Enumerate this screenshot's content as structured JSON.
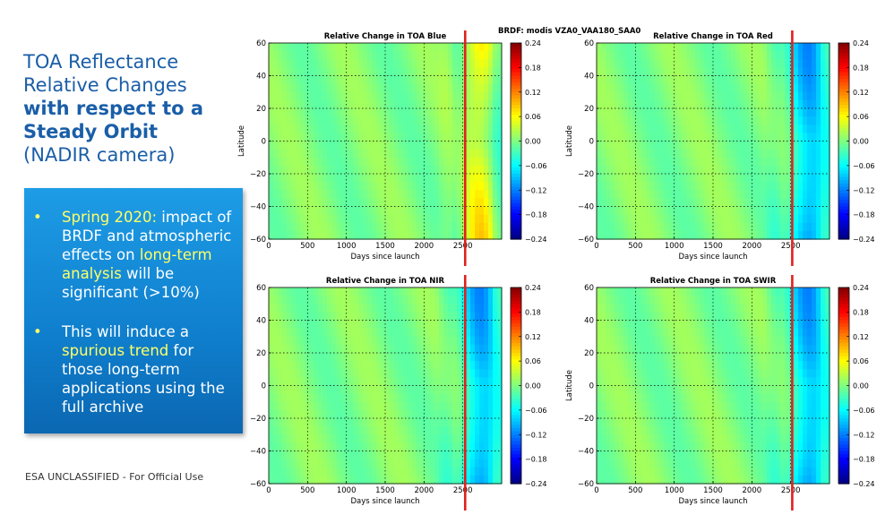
{
  "slide": {
    "title_line1": "TOA Reflectance",
    "title_line2": "Relative Changes",
    "title_line3": "with respect to a",
    "title_line4": "Steady Orbit",
    "title_line5": "(NADIR camera)",
    "bullets": [
      {
        "hl1": "Spring 2020:",
        "t1": " impact of BRDF and atmospheric effects on ",
        "hl2": "long-term analysis",
        "t2": " will be significant (>10%)"
      },
      {
        "t0": "This will induce a ",
        "hl1": "spurious trend",
        "t1": " for those long-term applications using the full archive"
      }
    ],
    "footer": "ESA UNCLASSIFIED - For Official Use",
    "brdf_title": "BRDF: modis VZA0_VAA180_SAA0",
    "colors": {
      "title": "#1a5ea8",
      "highlight": "#ffff66",
      "box": "#1690dc",
      "marker_line": "#e02020"
    }
  },
  "chart_data": [
    {
      "type": "heatmap",
      "title": "Relative Change in TOA Blue",
      "xlabel": "Days since launch",
      "ylabel": "Latitude",
      "xlim": [
        0,
        3000
      ],
      "ylim": [
        -60,
        60
      ],
      "xticks": [
        "0",
        "500",
        "1000",
        "1500",
        "2000",
        "2500"
      ],
      "yticks": [
        "60",
        "40",
        "20",
        "0",
        "−20",
        "−40",
        "−60"
      ],
      "colorbar": {
        "min": -0.24,
        "max": 0.24,
        "ticks": [
          "0.24",
          "0.18",
          "0.12",
          "0.06",
          "0.00",
          "−0.06",
          "−0.12",
          "−0.18",
          "−0.24"
        ]
      },
      "grid": true,
      "marker_day": 2530
    },
    {
      "type": "heatmap",
      "title": "Relative Change in TOA Red",
      "xlabel": "Days since launch",
      "ylabel": "Latitude",
      "xlim": [
        0,
        3000
      ],
      "ylim": [
        -60,
        60
      ],
      "xticks": [
        "0",
        "500",
        "1000",
        "1500",
        "2000",
        "2500"
      ],
      "yticks": [
        "60",
        "40",
        "20",
        "0",
        "−20",
        "−40",
        "−60"
      ],
      "colorbar": {
        "min": -0.24,
        "max": 0.24,
        "ticks": [
          "0.24",
          "0.18",
          "0.12",
          "0.06",
          "0.00",
          "−0.06",
          "−0.12",
          "−0.18",
          "−0.24"
        ]
      },
      "grid": true,
      "marker_day": 2520
    },
    {
      "type": "heatmap",
      "title": "Relative Change in TOA NIR",
      "xlabel": "Days since launch",
      "ylabel": "",
      "xlim": [
        0,
        3000
      ],
      "ylim": [
        -60,
        60
      ],
      "xticks": [
        "0",
        "500",
        "1000",
        "1500",
        "2000",
        "2500"
      ],
      "yticks": [
        "60",
        "40",
        "20",
        "0",
        "−20",
        "−40",
        "−60"
      ],
      "colorbar": {
        "min": -0.24,
        "max": 0.24,
        "ticks": [
          "0.24",
          "0.18",
          "0.12",
          "0.06",
          "0.00",
          "−0.06",
          "−0.12",
          "−0.18",
          "−0.24"
        ]
      },
      "grid": true,
      "marker_day": 2530
    },
    {
      "type": "heatmap",
      "title": "Relative Change in TOA SWIR",
      "xlabel": "Days since launch",
      "ylabel": "Latitude",
      "xlim": [
        0,
        3000
      ],
      "ylim": [
        -60,
        60
      ],
      "xticks": [
        "0",
        "500",
        "1000",
        "1500",
        "2000",
        "2500"
      ],
      "yticks": [
        "60",
        "40",
        "20",
        "0",
        "−20",
        "−40",
        "−60"
      ],
      "colorbar": {
        "min": -0.24,
        "max": 0.24,
        "ticks": [
          "0.24",
          "0.18",
          "0.12",
          "0.06",
          "0.00",
          "−0.06",
          "−0.12",
          "−0.18",
          "−0.24"
        ]
      },
      "grid": true,
      "marker_day": 2520
    }
  ]
}
